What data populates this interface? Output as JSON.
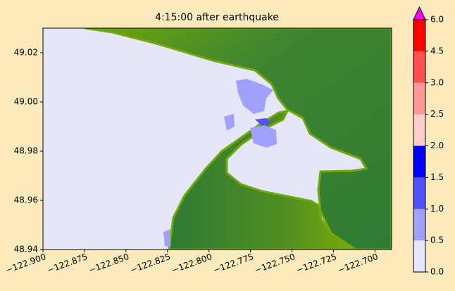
{
  "chart_data": {
    "type": "map",
    "title": "4:15:00 after earthquake",
    "xlim": [
      -122.9,
      -122.69
    ],
    "ylim": [
      48.94,
      49.03
    ],
    "xticks": [
      {
        "value": -122.9,
        "label": "−122.900"
      },
      {
        "value": -122.875,
        "label": "−122.875"
      },
      {
        "value": -122.85,
        "label": "−122.850"
      },
      {
        "value": -122.825,
        "label": "−122.825"
      },
      {
        "value": -122.8,
        "label": "−122.800"
      },
      {
        "value": -122.775,
        "label": "−122.775"
      },
      {
        "value": -122.75,
        "label": "−122.750"
      },
      {
        "value": -122.725,
        "label": "−122.725"
      },
      {
        "value": -122.7,
        "label": "−122.700"
      }
    ],
    "yticks": [
      48.94,
      48.96,
      48.98,
      {
        "value": 49.0,
        "label": "49.00"
      },
      49.02
    ],
    "colorbar": {
      "ticks": [
        {
          "value": 0,
          "label": "0.0"
        },
        {
          "value": 0.5,
          "label": "0.5"
        },
        {
          "value": 1,
          "label": "1.0"
        },
        {
          "value": 1.5,
          "label": "1.5"
        },
        {
          "value": 2,
          "label": "2.0"
        },
        {
          "value": 2.5,
          "label": "2.5"
        },
        {
          "value": 3,
          "label": "3.0"
        },
        {
          "value": 4.5,
          "label": "4.5"
        },
        {
          "value": 6,
          "label": "6.0"
        }
      ],
      "colors": [
        "#e6e6ff",
        "#a0a0ff",
        "#5050ff",
        "#0000ff",
        "#ffcccc",
        "#ff9999",
        "#ff5050",
        "#ff0000"
      ],
      "extend_color": "#ff00ff"
    }
  }
}
